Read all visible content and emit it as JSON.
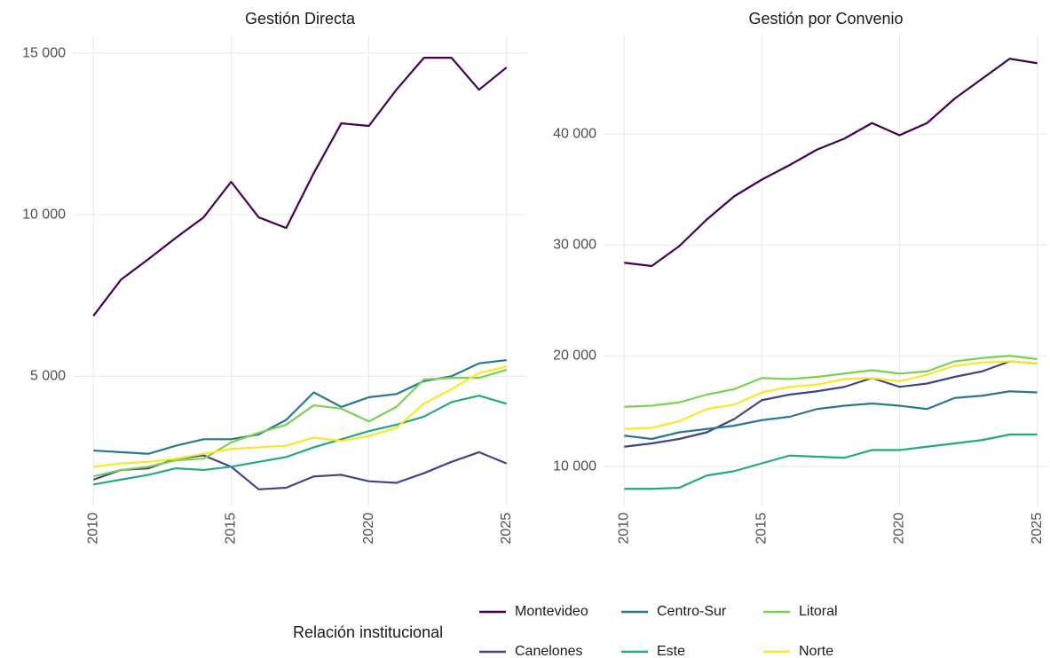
{
  "chart_data": [
    {
      "type": "line",
      "title": "Gestión Directa",
      "x": [
        2010,
        2011,
        2012,
        2013,
        2014,
        2015,
        2016,
        2017,
        2018,
        2019,
        2020,
        2021,
        2022,
        2023,
        2024,
        2025
      ],
      "xlim": [
        2009.25,
        2025.75
      ],
      "xticks": [
        2010,
        2015,
        2020,
        2025
      ],
      "ylim": [
        1000,
        15550
      ],
      "yticks": [
        {
          "value": 5000,
          "label": "5 000"
        },
        {
          "value": 10000,
          "label": "10 000"
        },
        {
          "value": 15000,
          "label": "15 000"
        }
      ],
      "grid": true,
      "series": [
        {
          "name": "Montevideo",
          "color": "#440154",
          "values": [
            6870,
            7990,
            8630,
            9290,
            9920,
            11020,
            9920,
            9590,
            11290,
            12830,
            12750,
            13870,
            14860,
            14860,
            13870,
            14560
          ]
        },
        {
          "name": "Canelones",
          "color": "#414487",
          "values": [
            1800,
            2100,
            2150,
            2450,
            2550,
            2200,
            1500,
            1550,
            1900,
            1950,
            1750,
            1700,
            2000,
            2350,
            2650,
            2300
          ]
        },
        {
          "name": "Centro-Sur",
          "color": "#2a788e",
          "values": [
            2700,
            2650,
            2600,
            2850,
            3050,
            3050,
            3200,
            3650,
            4500,
            4050,
            4350,
            4450,
            4850,
            5000,
            5400,
            5500
          ]
        },
        {
          "name": "Este",
          "color": "#22a884",
          "values": [
            1650,
            1800,
            1950,
            2150,
            2100,
            2200,
            2350,
            2500,
            2800,
            3050,
            3300,
            3500,
            3750,
            4200,
            4400,
            4150
          ]
        },
        {
          "name": "Litoral",
          "color": "#7ad151",
          "values": [
            1900,
            2100,
            2200,
            2400,
            2450,
            2950,
            3250,
            3500,
            4100,
            4000,
            3600,
            4050,
            4900,
            4950,
            4950,
            5200
          ]
        },
        {
          "name": "Norte",
          "color": "#fde725",
          "values": [
            2200,
            2300,
            2350,
            2450,
            2600,
            2750,
            2800,
            2850,
            3100,
            3000,
            3150,
            3400,
            4150,
            4600,
            5100,
            5300
          ]
        }
      ]
    },
    {
      "type": "line",
      "title": "Gestión por Convenio",
      "x": [
        2010,
        2011,
        2012,
        2013,
        2014,
        2015,
        2016,
        2017,
        2018,
        2019,
        2020,
        2021,
        2022,
        2023,
        2024,
        2025
      ],
      "xlim": [
        2009.25,
        2025.4
      ],
      "xticks": [
        2010,
        2015,
        2020,
        2025
      ],
      "ylim": [
        6500,
        48900
      ],
      "yticks": [
        {
          "value": 10000,
          "label": "10 000"
        },
        {
          "value": 20000,
          "label": "20 000"
        },
        {
          "value": 30000,
          "label": "30 000"
        },
        {
          "value": 40000,
          "label": "40 000"
        }
      ],
      "grid": true,
      "series": [
        {
          "name": "Montevideo",
          "color": "#440154",
          "values": [
            28400,
            28100,
            29900,
            32300,
            34400,
            35900,
            37200,
            38600,
            39600,
            41000,
            39900,
            41000,
            43200,
            45000,
            46800,
            46400
          ]
        },
        {
          "name": "Canelones",
          "color": "#414487",
          "values": [
            11800,
            12100,
            12500,
            13100,
            14300,
            16000,
            16500,
            16800,
            17200,
            18000,
            17200,
            17500,
            18100,
            18600,
            19500,
            19300
          ]
        },
        {
          "name": "Centro-Sur",
          "color": "#2a788e",
          "values": [
            12800,
            12500,
            13100,
            13400,
            13700,
            14200,
            14500,
            15200,
            15500,
            15700,
            15500,
            15200,
            16200,
            16400,
            16800,
            16700
          ]
        },
        {
          "name": "Este",
          "color": "#22a884",
          "values": [
            8000,
            8000,
            8100,
            9200,
            9600,
            10300,
            11000,
            10900,
            10800,
            11500,
            11500,
            11800,
            12100,
            12400,
            12900,
            12900
          ]
        },
        {
          "name": "Litoral",
          "color": "#7ad151",
          "values": [
            15400,
            15500,
            15800,
            16500,
            17000,
            18000,
            17900,
            18100,
            18400,
            18700,
            18400,
            18600,
            19500,
            19800,
            20000,
            19700
          ]
        },
        {
          "name": "Norte",
          "color": "#fde725",
          "values": [
            13400,
            13500,
            14100,
            15200,
            15600,
            16700,
            17200,
            17400,
            17900,
            18000,
            17700,
            18300,
            19100,
            19400,
            19500,
            19300
          ]
        }
      ]
    }
  ],
  "legend": {
    "title": "Relación institucional"
  }
}
